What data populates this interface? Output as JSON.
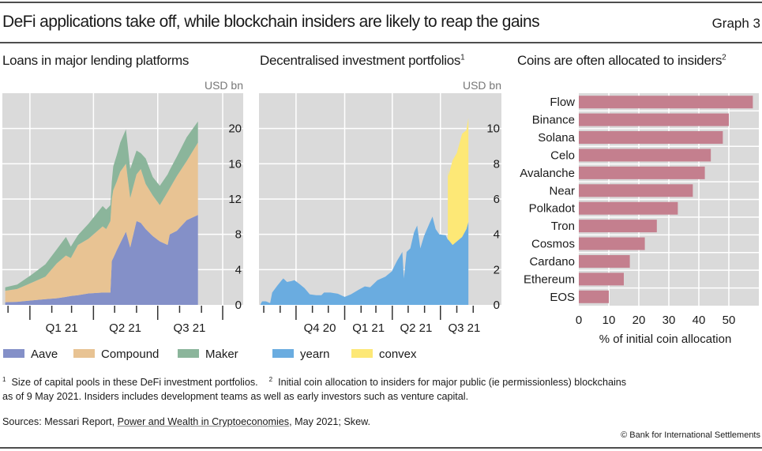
{
  "header": {
    "title": "DeFi applications take off, while blockchain insiders are likely to reap the gains",
    "graph_number": "Graph 3"
  },
  "colors": {
    "plot_background": "#dadada",
    "grid": "#ffffff",
    "aave": "#8490c8",
    "compound": "#e8c393",
    "maker": "#8bb59b",
    "yearn": "#6aace0",
    "convex": "#fde876",
    "bars": "#c47f8e"
  },
  "chart_data": [
    {
      "type": "area",
      "stacked": true,
      "title": "Loans in major lending platforms",
      "unit_label": "USD bn",
      "ylim": [
        0,
        24
      ],
      "yticks": [
        0,
        4,
        8,
        12,
        16,
        20
      ],
      "xlim": [
        "2020-11-23",
        "2021-10-01"
      ],
      "xticks_minor": [
        "2020-12-01",
        "2021-02-01",
        "2021-03-01",
        "2021-05-01",
        "2021-06-01",
        "2021-08-01",
        "2021-09-01"
      ],
      "xticks_major": [
        "2021-01-01",
        "2021-04-01",
        "2021-07-01",
        "2021-10-01"
      ],
      "xtick_labels": [
        {
          "label": "Q1 21",
          "quarter_start": "2021-01-01"
        },
        {
          "label": "Q2 21",
          "quarter_start": "2021-04-01"
        },
        {
          "label": "Q3 21",
          "quarter_start": "2021-07-01"
        }
      ],
      "grid": true,
      "legend": "bottom",
      "x": [
        "2020-11-27",
        "2020-12-14",
        "2021-01-03",
        "2021-01-23",
        "2021-02-08",
        "2021-02-21",
        "2021-02-28",
        "2021-03-10",
        "2021-03-25",
        "2021-04-14",
        "2021-04-19",
        "2021-04-25",
        "2021-04-27",
        "2021-04-29",
        "2021-05-04",
        "2021-05-09",
        "2021-05-17",
        "2021-05-23",
        "2021-06-01",
        "2021-06-07",
        "2021-06-14",
        "2021-06-24",
        "2021-07-04",
        "2021-07-15",
        "2021-07-18",
        "2021-07-28",
        "2021-08-11",
        "2021-08-27"
      ],
      "series": [
        {
          "name": "Aave",
          "color_key": "aave",
          "values": [
            0.3,
            0.35,
            0.5,
            0.65,
            0.75,
            0.9,
            1.0,
            1.1,
            1.3,
            1.4,
            1.4,
            1.4,
            5.0,
            5.3,
            6.2,
            7.0,
            8.3,
            6.5,
            9.5,
            9.3,
            8.6,
            7.8,
            7.2,
            6.8,
            8.0,
            8.4,
            9.6,
            10.2
          ]
        },
        {
          "name": "Compound",
          "color_key": "compound",
          "values": [
            1.3,
            1.45,
            2.0,
            2.55,
            3.95,
            4.7,
            4.3,
            5.7,
            6.2,
            7.5,
            7.2,
            8.1,
            7.0,
            7.7,
            7.8,
            8.1,
            7.7,
            5.6,
            5.3,
            6.1,
            5.1,
            4.6,
            4.1,
            6.0,
            5.2,
            6.2,
            6.7,
            8.2
          ]
        },
        {
          "name": "Maker",
          "color_key": "maker",
          "values": [
            0.4,
            0.5,
            0.9,
            1.4,
            1.6,
            2.1,
            1.3,
            1.1,
            1.7,
            2.3,
            2.2,
            1.8,
            2.0,
            2.7,
            3.0,
            3.3,
            3.9,
            3.3,
            2.7,
            1.8,
            2.9,
            2.1,
            2.2,
            2.0,
            2.1,
            2.2,
            2.7,
            2.4
          ]
        }
      ]
    },
    {
      "type": "area",
      "stacked": true,
      "title": "Decentralised investment portfolios",
      "title_footnote": "1",
      "unit_label": "USD bn",
      "ylim": [
        0,
        12
      ],
      "yticks": [
        0,
        2,
        4,
        6,
        8,
        10
      ],
      "xlim": [
        "2020-07-23",
        "2021-09-20"
      ],
      "xticks_minor": [
        "2020-08-01",
        "2020-09-01",
        "2020-11-01",
        "2020-12-01",
        "2021-02-01",
        "2021-03-01",
        "2021-05-01",
        "2021-06-01",
        "2021-08-01",
        "2021-09-01"
      ],
      "xticks_major": [
        "2020-10-01",
        "2021-01-01",
        "2021-04-01",
        "2021-07-01"
      ],
      "xtick_labels": [
        {
          "label": "Q4 20",
          "quarter_start": "2020-10-01"
        },
        {
          "label": "Q1 21",
          "quarter_start": "2021-01-01"
        },
        {
          "label": "Q2 21",
          "quarter_start": "2021-04-01"
        },
        {
          "label": "Q3 21",
          "quarter_start": "2021-07-01"
        }
      ],
      "grid": true,
      "legend": "bottom",
      "x": [
        "2020-07-26",
        "2020-07-29",
        "2020-08-05",
        "2020-08-13",
        "2020-08-17",
        "2020-08-27",
        "2020-09-04",
        "2020-09-07",
        "2020-09-14",
        "2020-09-22",
        "2020-09-28",
        "2020-10-07",
        "2020-10-17",
        "2020-10-27",
        "2020-11-08",
        "2020-11-18",
        "2020-11-23",
        "2020-12-05",
        "2020-12-19",
        "2021-01-01",
        "2021-01-13",
        "2021-01-27",
        "2021-02-08",
        "2021-02-18",
        "2021-03-04",
        "2021-03-19",
        "2021-03-31",
        "2021-04-10",
        "2021-04-20",
        "2021-04-23",
        "2021-04-28",
        "2021-05-05",
        "2021-05-12",
        "2021-05-18",
        "2021-05-24",
        "2021-05-31",
        "2021-06-10",
        "2021-06-16",
        "2021-06-22",
        "2021-06-29",
        "2021-07-11",
        "2021-07-15",
        "2021-07-16",
        "2021-07-24",
        "2021-08-01",
        "2021-08-11",
        "2021-08-19",
        "2021-08-23"
      ],
      "series": [
        {
          "name": "yearn",
          "color_key": "yearn",
          "values": [
            0.05,
            0.2,
            0.2,
            0.1,
            0.7,
            1.1,
            1.4,
            1.5,
            1.3,
            1.35,
            1.4,
            1.2,
            0.95,
            0.6,
            0.55,
            0.55,
            0.7,
            0.7,
            0.63,
            0.45,
            0.6,
            0.85,
            1.05,
            1.0,
            1.4,
            1.6,
            1.9,
            2.5,
            3.0,
            1.5,
            3.0,
            3.2,
            4.1,
            4.5,
            3.2,
            3.9,
            4.6,
            5.0,
            4.3,
            4.0,
            3.95,
            3.7,
            3.7,
            3.4,
            3.6,
            3.85,
            4.3,
            4.7
          ]
        },
        {
          "name": "convex",
          "color_key": "convex",
          "values": [
            0,
            0,
            0,
            0,
            0,
            0,
            0,
            0,
            0,
            0,
            0,
            0,
            0,
            0,
            0,
            0,
            0,
            0,
            0,
            0,
            0,
            0,
            0,
            0,
            0,
            0,
            0,
            0,
            0,
            0,
            0,
            0,
            0,
            0,
            0,
            0,
            0,
            0,
            0,
            0,
            0,
            4.1,
            3.6,
            4.8,
            5.0,
            5.85,
            5.6,
            5.9
          ]
        }
      ]
    },
    {
      "type": "bar",
      "orientation": "horizontal",
      "title": "Coins are often allocated to insiders",
      "title_footnote": "2",
      "xlabel": "% of initial coin allocation",
      "xlim": [
        0,
        60
      ],
      "xticks": [
        0,
        10,
        20,
        30,
        40,
        50
      ],
      "grid": true,
      "categories": [
        "Flow",
        "Binance",
        "Solana",
        "Celo",
        "Avalanche",
        "Near",
        "Polkadot",
        "Tron",
        "Cosmos",
        "Cardano",
        "Ethereum",
        "EOS"
      ],
      "values": [
        58,
        50,
        48,
        44,
        42,
        38,
        33,
        26,
        22,
        17,
        15,
        10
      ]
    }
  ],
  "footnotes": {
    "line1_note1_marker": "1",
    "line1_note1": "Size of capital pools in these DeFi investment portfolios.",
    "line1_note2_marker": "2",
    "line1_note2": "Initial coin allocation to insiders for major public (ie permissionless) blockchains",
    "line2": "as of 9 May 2021. Insiders includes development teams as well as early investors such as venture capital.",
    "sources_prefix": "Sources: Messari Report, ",
    "sources_link": "Power and Wealth in Cryptoeconomies",
    "sources_suffix": ", May 2021; Skew."
  },
  "copyright": "© Bank for International Settlements"
}
